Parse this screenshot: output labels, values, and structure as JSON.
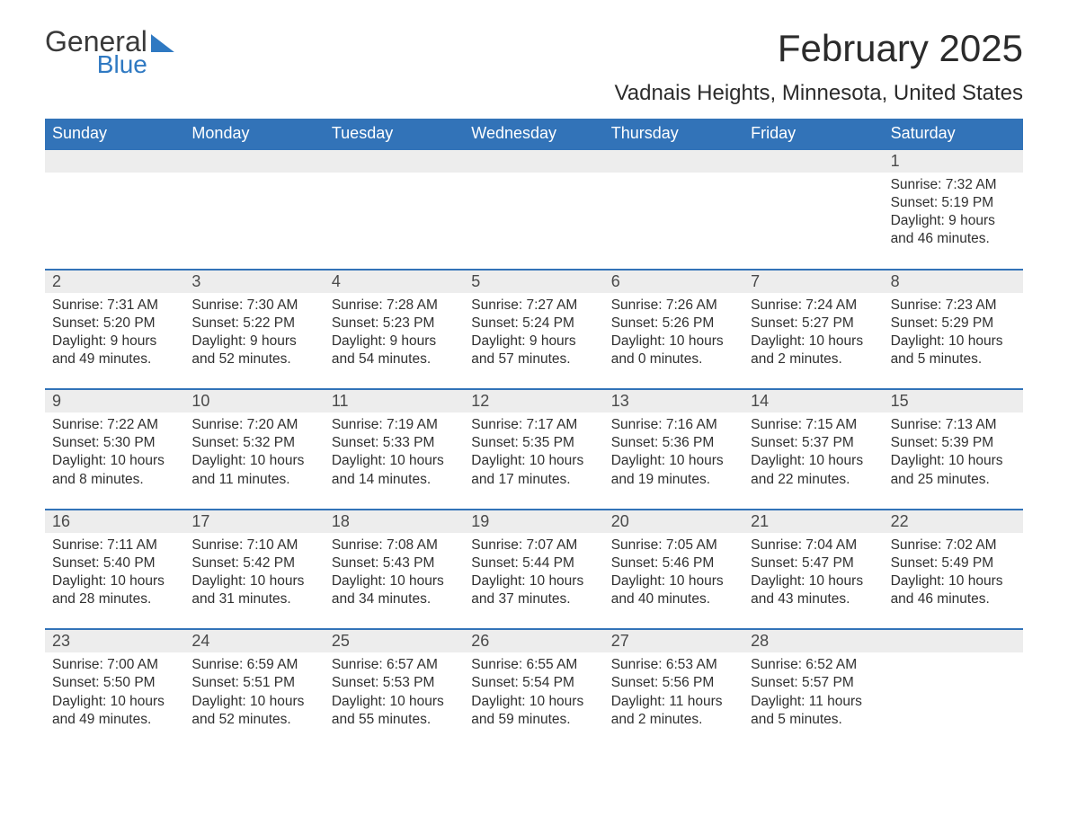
{
  "logo": {
    "general": "General",
    "blue": "Blue"
  },
  "title": "February 2025",
  "location": "Vadnais Heights, Minnesota, United States",
  "colors": {
    "header_bg": "#3273b8",
    "header_text": "#ffffff",
    "date_strip_bg": "#ededed",
    "text": "#303030",
    "logo_blue": "#2f79c2",
    "page_bg": "#ffffff"
  },
  "days_of_week": [
    "Sunday",
    "Monday",
    "Tuesday",
    "Wednesday",
    "Thursday",
    "Friday",
    "Saturday"
  ],
  "weeks": [
    [
      {
        "n": "",
        "sr": "",
        "ss": "",
        "dl": ""
      },
      {
        "n": "",
        "sr": "",
        "ss": "",
        "dl": ""
      },
      {
        "n": "",
        "sr": "",
        "ss": "",
        "dl": ""
      },
      {
        "n": "",
        "sr": "",
        "ss": "",
        "dl": ""
      },
      {
        "n": "",
        "sr": "",
        "ss": "",
        "dl": ""
      },
      {
        "n": "",
        "sr": "",
        "ss": "",
        "dl": ""
      },
      {
        "n": "1",
        "sr": "Sunrise: 7:32 AM",
        "ss": "Sunset: 5:19 PM",
        "dl": "Daylight: 9 hours and 46 minutes."
      }
    ],
    [
      {
        "n": "2",
        "sr": "Sunrise: 7:31 AM",
        "ss": "Sunset: 5:20 PM",
        "dl": "Daylight: 9 hours and 49 minutes."
      },
      {
        "n": "3",
        "sr": "Sunrise: 7:30 AM",
        "ss": "Sunset: 5:22 PM",
        "dl": "Daylight: 9 hours and 52 minutes."
      },
      {
        "n": "4",
        "sr": "Sunrise: 7:28 AM",
        "ss": "Sunset: 5:23 PM",
        "dl": "Daylight: 9 hours and 54 minutes."
      },
      {
        "n": "5",
        "sr": "Sunrise: 7:27 AM",
        "ss": "Sunset: 5:24 PM",
        "dl": "Daylight: 9 hours and 57 minutes."
      },
      {
        "n": "6",
        "sr": "Sunrise: 7:26 AM",
        "ss": "Sunset: 5:26 PM",
        "dl": "Daylight: 10 hours and 0 minutes."
      },
      {
        "n": "7",
        "sr": "Sunrise: 7:24 AM",
        "ss": "Sunset: 5:27 PM",
        "dl": "Daylight: 10 hours and 2 minutes."
      },
      {
        "n": "8",
        "sr": "Sunrise: 7:23 AM",
        "ss": "Sunset: 5:29 PM",
        "dl": "Daylight: 10 hours and 5 minutes."
      }
    ],
    [
      {
        "n": "9",
        "sr": "Sunrise: 7:22 AM",
        "ss": "Sunset: 5:30 PM",
        "dl": "Daylight: 10 hours and 8 minutes."
      },
      {
        "n": "10",
        "sr": "Sunrise: 7:20 AM",
        "ss": "Sunset: 5:32 PM",
        "dl": "Daylight: 10 hours and 11 minutes."
      },
      {
        "n": "11",
        "sr": "Sunrise: 7:19 AM",
        "ss": "Sunset: 5:33 PM",
        "dl": "Daylight: 10 hours and 14 minutes."
      },
      {
        "n": "12",
        "sr": "Sunrise: 7:17 AM",
        "ss": "Sunset: 5:35 PM",
        "dl": "Daylight: 10 hours and 17 minutes."
      },
      {
        "n": "13",
        "sr": "Sunrise: 7:16 AM",
        "ss": "Sunset: 5:36 PM",
        "dl": "Daylight: 10 hours and 19 minutes."
      },
      {
        "n": "14",
        "sr": "Sunrise: 7:15 AM",
        "ss": "Sunset: 5:37 PM",
        "dl": "Daylight: 10 hours and 22 minutes."
      },
      {
        "n": "15",
        "sr": "Sunrise: 7:13 AM",
        "ss": "Sunset: 5:39 PM",
        "dl": "Daylight: 10 hours and 25 minutes."
      }
    ],
    [
      {
        "n": "16",
        "sr": "Sunrise: 7:11 AM",
        "ss": "Sunset: 5:40 PM",
        "dl": "Daylight: 10 hours and 28 minutes."
      },
      {
        "n": "17",
        "sr": "Sunrise: 7:10 AM",
        "ss": "Sunset: 5:42 PM",
        "dl": "Daylight: 10 hours and 31 minutes."
      },
      {
        "n": "18",
        "sr": "Sunrise: 7:08 AM",
        "ss": "Sunset: 5:43 PM",
        "dl": "Daylight: 10 hours and 34 minutes."
      },
      {
        "n": "19",
        "sr": "Sunrise: 7:07 AM",
        "ss": "Sunset: 5:44 PM",
        "dl": "Daylight: 10 hours and 37 minutes."
      },
      {
        "n": "20",
        "sr": "Sunrise: 7:05 AM",
        "ss": "Sunset: 5:46 PM",
        "dl": "Daylight: 10 hours and 40 minutes."
      },
      {
        "n": "21",
        "sr": "Sunrise: 7:04 AM",
        "ss": "Sunset: 5:47 PM",
        "dl": "Daylight: 10 hours and 43 minutes."
      },
      {
        "n": "22",
        "sr": "Sunrise: 7:02 AM",
        "ss": "Sunset: 5:49 PM",
        "dl": "Daylight: 10 hours and 46 minutes."
      }
    ],
    [
      {
        "n": "23",
        "sr": "Sunrise: 7:00 AM",
        "ss": "Sunset: 5:50 PM",
        "dl": "Daylight: 10 hours and 49 minutes."
      },
      {
        "n": "24",
        "sr": "Sunrise: 6:59 AM",
        "ss": "Sunset: 5:51 PM",
        "dl": "Daylight: 10 hours and 52 minutes."
      },
      {
        "n": "25",
        "sr": "Sunrise: 6:57 AM",
        "ss": "Sunset: 5:53 PM",
        "dl": "Daylight: 10 hours and 55 minutes."
      },
      {
        "n": "26",
        "sr": "Sunrise: 6:55 AM",
        "ss": "Sunset: 5:54 PM",
        "dl": "Daylight: 10 hours and 59 minutes."
      },
      {
        "n": "27",
        "sr": "Sunrise: 6:53 AM",
        "ss": "Sunset: 5:56 PM",
        "dl": "Daylight: 11 hours and 2 minutes."
      },
      {
        "n": "28",
        "sr": "Sunrise: 6:52 AM",
        "ss": "Sunset: 5:57 PM",
        "dl": "Daylight: 11 hours and 5 minutes."
      },
      {
        "n": "",
        "sr": "",
        "ss": "",
        "dl": ""
      }
    ]
  ]
}
